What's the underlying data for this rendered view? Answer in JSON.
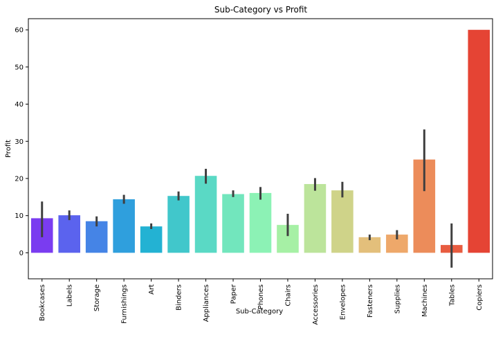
{
  "chart_data": {
    "type": "bar",
    "title": "Sub-Category vs Profit",
    "xlabel": "Sub-Category",
    "ylabel": "Profit",
    "ylim": [
      -7,
      63
    ],
    "yticks": [
      0,
      10,
      20,
      30,
      40,
      50,
      60
    ],
    "grid": false,
    "categories": [
      "Bookcases",
      "Labels",
      "Storage",
      "Furnishings",
      "Art",
      "Binders",
      "Appliances",
      "Paper",
      "Phones",
      "Chairs",
      "Accessories",
      "Envelopes",
      "Fasteners",
      "Supplies",
      "Machines",
      "Tables",
      "Copiers"
    ],
    "values": [
      9.3,
      10.1,
      8.5,
      14.4,
      7.1,
      15.3,
      20.7,
      15.8,
      16.1,
      7.5,
      18.5,
      16.8,
      4.2,
      4.9,
      25.1,
      2.1,
      60.0
    ],
    "error_low": [
      4.2,
      8.8,
      7.1,
      13.2,
      6.4,
      14.1,
      18.6,
      15.0,
      14.3,
      4.5,
      16.7,
      14.9,
      3.4,
      3.6,
      16.6,
      -4.0,
      60.0
    ],
    "error_high": [
      13.8,
      11.4,
      9.8,
      15.6,
      7.9,
      16.5,
      22.6,
      16.8,
      17.7,
      10.5,
      20.1,
      19.1,
      4.9,
      6.1,
      33.2,
      7.9,
      60.0
    ],
    "colors": [
      "#7a3cf0",
      "#5b63ee",
      "#4584e6",
      "#2f9fdd",
      "#23b2d3",
      "#41c7cb",
      "#5ad9c5",
      "#72e6bd",
      "#8cf2b5",
      "#a6f0a5",
      "#bce49b",
      "#cfd389",
      "#e3bf7b",
      "#eea86a",
      "#ec8c5a",
      "#e85c40",
      "#e54434"
    ],
    "error_color": "#3f3f3f"
  }
}
